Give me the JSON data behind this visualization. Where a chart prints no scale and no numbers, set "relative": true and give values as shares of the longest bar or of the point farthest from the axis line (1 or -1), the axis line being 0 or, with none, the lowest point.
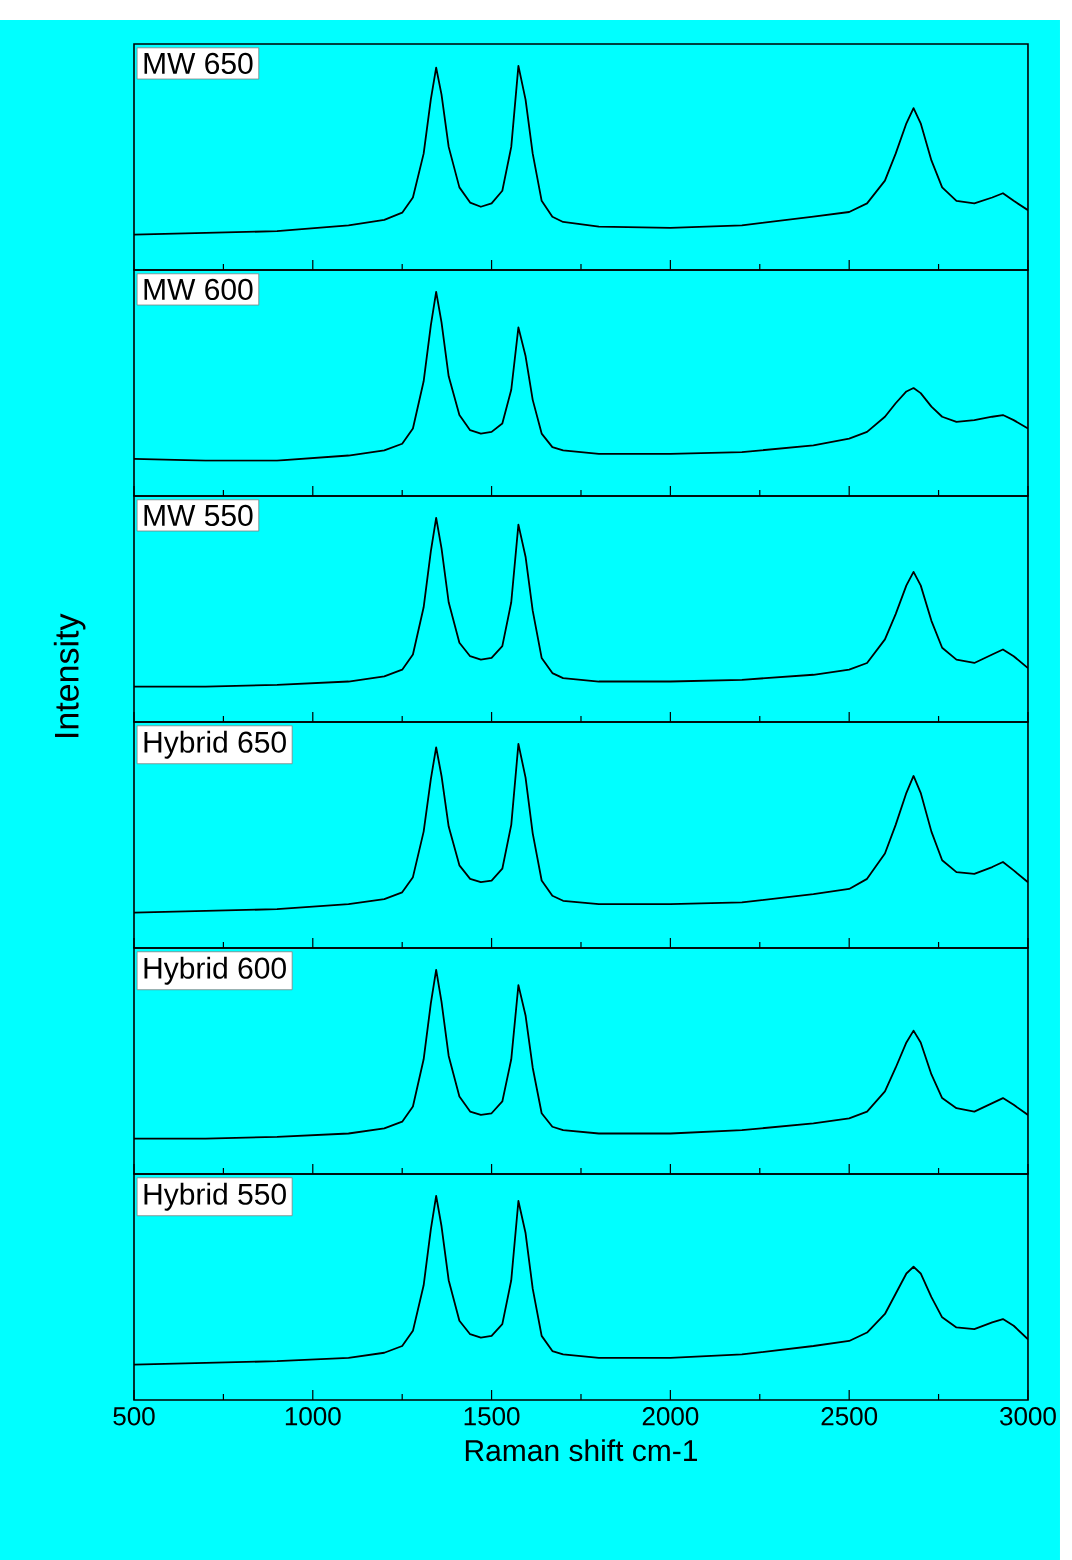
{
  "chart_data": [
    {
      "type": "line",
      "title": "MW 650",
      "relative": true,
      "xlim": [
        500,
        3000
      ],
      "xticks": [
        500,
        1000,
        1500,
        2000,
        2500,
        3000
      ],
      "tick_labels": false,
      "x": [
        500,
        700,
        900,
        1100,
        1200,
        1250,
        1280,
        1310,
        1330,
        1345,
        1360,
        1380,
        1410,
        1440,
        1470,
        1500,
        1530,
        1555,
        1575,
        1595,
        1615,
        1640,
        1670,
        1700,
        1800,
        2000,
        2200,
        2400,
        2500,
        2550,
        2600,
        2630,
        2660,
        2680,
        2700,
        2730,
        2760,
        2800,
        2850,
        2900,
        2930,
        2960,
        3000
      ],
      "series": [
        {
          "color": "#000000",
          "values": [
            0,
            0.01,
            0.02,
            0.055,
            0.087,
            0.13,
            0.22,
            0.48,
            0.8,
            0.99,
            0.83,
            0.52,
            0.28,
            0.19,
            0.165,
            0.185,
            0.26,
            0.52,
            1.0,
            0.8,
            0.48,
            0.2,
            0.106,
            0.075,
            0.047,
            0.04,
            0.055,
            0.106,
            0.134,
            0.185,
            0.32,
            0.48,
            0.66,
            0.75,
            0.66,
            0.44,
            0.28,
            0.2,
            0.185,
            0.22,
            0.245,
            0.2,
            0.145
          ]
        }
      ]
    },
    {
      "type": "line",
      "title": "MW 600",
      "relative": true,
      "xlim": [
        500,
        3000
      ],
      "xticks": [
        500,
        1000,
        1500,
        2000,
        2500,
        3000
      ],
      "tick_labels": false,
      "x": [
        500,
        700,
        900,
        1100,
        1200,
        1250,
        1280,
        1310,
        1330,
        1345,
        1360,
        1380,
        1410,
        1440,
        1470,
        1500,
        1530,
        1555,
        1575,
        1595,
        1615,
        1640,
        1670,
        1700,
        1800,
        2000,
        2200,
        2400,
        2500,
        2550,
        2600,
        2630,
        2660,
        2680,
        2700,
        2730,
        2760,
        2800,
        2850,
        2900,
        2930,
        2960,
        3000
      ],
      "series": [
        {
          "color": "#000000",
          "values": [
            0.01,
            0.0,
            0.0,
            0.03,
            0.06,
            0.1,
            0.19,
            0.47,
            0.8,
            1.0,
            0.82,
            0.5,
            0.27,
            0.18,
            0.16,
            0.17,
            0.22,
            0.42,
            0.79,
            0.62,
            0.36,
            0.16,
            0.08,
            0.06,
            0.04,
            0.04,
            0.05,
            0.09,
            0.13,
            0.17,
            0.26,
            0.34,
            0.41,
            0.43,
            0.4,
            0.32,
            0.26,
            0.23,
            0.24,
            0.26,
            0.27,
            0.24,
            0.19
          ]
        }
      ]
    },
    {
      "type": "line",
      "title": "MW 550",
      "ylabel": "Intensity",
      "relative": true,
      "xlim": [
        500,
        3000
      ],
      "xticks": [
        500,
        1000,
        1500,
        2000,
        2500,
        3000
      ],
      "tick_labels": false,
      "x": [
        500,
        700,
        900,
        1100,
        1200,
        1250,
        1280,
        1310,
        1330,
        1345,
        1360,
        1380,
        1410,
        1440,
        1470,
        1500,
        1530,
        1555,
        1575,
        1595,
        1615,
        1640,
        1670,
        1700,
        1800,
        2000,
        2200,
        2400,
        2500,
        2550,
        2600,
        2630,
        2660,
        2680,
        2700,
        2730,
        2760,
        2800,
        2850,
        2900,
        2930,
        2960,
        3000
      ],
      "series": [
        {
          "color": "#000000",
          "values": [
            0,
            0.0,
            0.01,
            0.03,
            0.06,
            0.1,
            0.19,
            0.47,
            0.8,
            1.0,
            0.82,
            0.5,
            0.26,
            0.18,
            0.16,
            0.17,
            0.24,
            0.5,
            0.96,
            0.77,
            0.45,
            0.17,
            0.08,
            0.05,
            0.03,
            0.03,
            0.04,
            0.07,
            0.1,
            0.14,
            0.28,
            0.43,
            0.6,
            0.68,
            0.6,
            0.39,
            0.23,
            0.16,
            0.14,
            0.19,
            0.22,
            0.18,
            0.11
          ]
        }
      ]
    },
    {
      "type": "line",
      "title": "Hybrid 650",
      "relative": true,
      "xlim": [
        500,
        3000
      ],
      "xticks": [
        500,
        1000,
        1500,
        2000,
        2500,
        3000
      ],
      "tick_labels": false,
      "x": [
        500,
        700,
        900,
        1100,
        1200,
        1250,
        1280,
        1310,
        1330,
        1345,
        1360,
        1380,
        1410,
        1440,
        1470,
        1500,
        1530,
        1555,
        1575,
        1595,
        1615,
        1640,
        1670,
        1700,
        1800,
        2000,
        2200,
        2400,
        2500,
        2550,
        2600,
        2630,
        2660,
        2680,
        2700,
        2730,
        2760,
        2800,
        2850,
        2900,
        2930,
        2960,
        3000
      ],
      "series": [
        {
          "color": "#000000",
          "values": [
            0,
            0.01,
            0.02,
            0.05,
            0.08,
            0.12,
            0.21,
            0.48,
            0.79,
            0.98,
            0.81,
            0.51,
            0.28,
            0.2,
            0.18,
            0.19,
            0.26,
            0.52,
            1.0,
            0.8,
            0.47,
            0.19,
            0.1,
            0.07,
            0.05,
            0.05,
            0.06,
            0.11,
            0.14,
            0.2,
            0.35,
            0.52,
            0.71,
            0.81,
            0.71,
            0.48,
            0.31,
            0.24,
            0.23,
            0.27,
            0.3,
            0.25,
            0.18
          ]
        }
      ]
    },
    {
      "type": "line",
      "title": "Hybrid 600",
      "relative": true,
      "xlim": [
        500,
        3000
      ],
      "xticks": [
        500,
        1000,
        1500,
        2000,
        2500,
        3000
      ],
      "tick_labels": false,
      "x": [
        500,
        700,
        900,
        1100,
        1200,
        1250,
        1280,
        1310,
        1330,
        1345,
        1360,
        1380,
        1410,
        1440,
        1470,
        1500,
        1530,
        1555,
        1575,
        1595,
        1615,
        1640,
        1670,
        1700,
        1800,
        2000,
        2200,
        2400,
        2500,
        2550,
        2600,
        2630,
        2660,
        2680,
        2700,
        2730,
        2760,
        2800,
        2850,
        2900,
        2930,
        2960,
        3000
      ],
      "series": [
        {
          "color": "#000000",
          "values": [
            0,
            0.0,
            0.01,
            0.03,
            0.06,
            0.1,
            0.19,
            0.47,
            0.8,
            1.0,
            0.81,
            0.49,
            0.25,
            0.16,
            0.14,
            0.15,
            0.22,
            0.47,
            0.91,
            0.73,
            0.42,
            0.15,
            0.07,
            0.05,
            0.03,
            0.03,
            0.05,
            0.09,
            0.12,
            0.16,
            0.28,
            0.42,
            0.57,
            0.64,
            0.57,
            0.38,
            0.24,
            0.18,
            0.16,
            0.21,
            0.24,
            0.2,
            0.14
          ]
        }
      ]
    },
    {
      "type": "line",
      "title": "Hybrid 550",
      "xlabel": "Raman shift cm-1",
      "relative": true,
      "xlim": [
        500,
        3000
      ],
      "xticks": [
        500,
        1000,
        1500,
        2000,
        2500,
        3000
      ],
      "tick_labels": "x",
      "x": [
        500,
        700,
        900,
        1100,
        1200,
        1250,
        1280,
        1310,
        1330,
        1345,
        1360,
        1380,
        1410,
        1440,
        1470,
        1500,
        1530,
        1555,
        1575,
        1595,
        1615,
        1640,
        1670,
        1700,
        1800,
        2000,
        2200,
        2400,
        2500,
        2550,
        2600,
        2630,
        2660,
        2680,
        2700,
        2730,
        2760,
        2800,
        2850,
        2900,
        2930,
        2960,
        3000
      ],
      "series": [
        {
          "color": "#000000",
          "values": [
            0,
            0.01,
            0.02,
            0.04,
            0.07,
            0.11,
            0.2,
            0.47,
            0.8,
            1.0,
            0.82,
            0.5,
            0.26,
            0.18,
            0.16,
            0.17,
            0.24,
            0.5,
            0.97,
            0.78,
            0.45,
            0.17,
            0.08,
            0.06,
            0.04,
            0.04,
            0.06,
            0.11,
            0.14,
            0.19,
            0.3,
            0.42,
            0.54,
            0.58,
            0.54,
            0.4,
            0.28,
            0.22,
            0.21,
            0.25,
            0.27,
            0.23,
            0.15
          ]
        }
      ]
    }
  ]
}
